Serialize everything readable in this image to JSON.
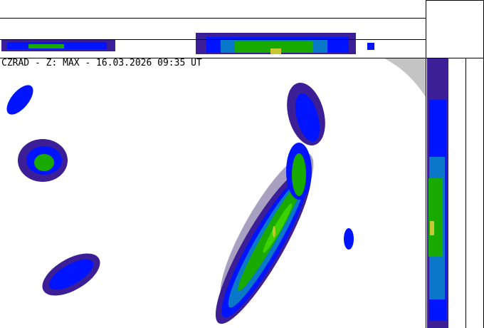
{
  "title": "CZRAD - Z: MAX - 16.03.2026 09:35 UT",
  "colors": {
    "weak": "#3c1e96",
    "low": "#0014ff",
    "mid": "#0a78c8",
    "green": "#19aa00",
    "lightgreen": "#3cd200",
    "yellow": "#c8c832",
    "clutter": "#a8a0c0",
    "outside_range": "#c4c4c4"
  }
}
